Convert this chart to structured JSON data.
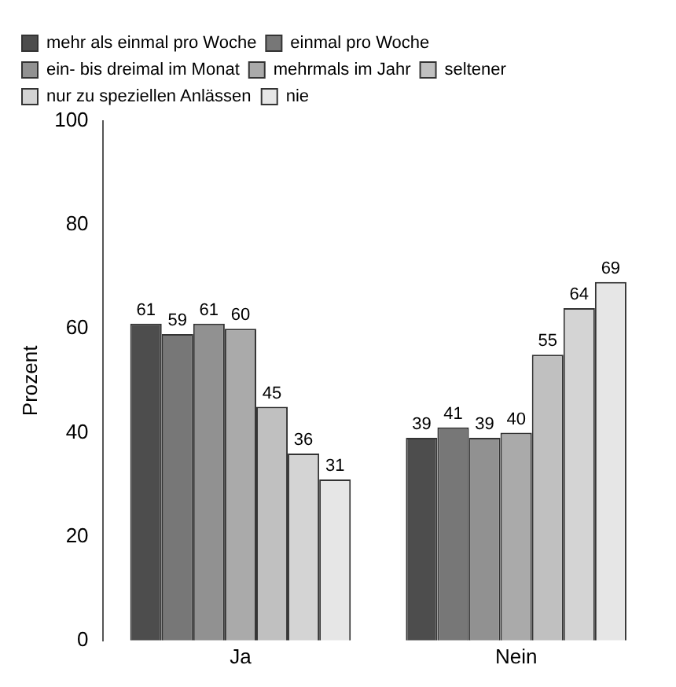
{
  "chart_data": {
    "type": "bar",
    "ylabel": "Prozent",
    "categories": [
      "Ja",
      "Nein"
    ],
    "series": [
      {
        "name": "mehr als einmal pro Woche",
        "color": "#4d4d4d",
        "values": [
          61,
          39
        ]
      },
      {
        "name": "einmal pro Woche",
        "color": "#777777",
        "values": [
          59,
          41
        ]
      },
      {
        "name": "ein- bis dreimal im Monat",
        "color": "#919191",
        "values": [
          61,
          39
        ]
      },
      {
        "name": "mehrmals im Jahr",
        "color": "#aaaaaa",
        "values": [
          60,
          40
        ]
      },
      {
        "name": "seltener",
        "color": "#c0c0c0",
        "values": [
          45,
          55
        ]
      },
      {
        "name": "nur zu speziellen Anlässen",
        "color": "#d4d4d4",
        "values": [
          36,
          64
        ]
      },
      {
        "name": "nie",
        "color": "#e6e6e6",
        "values": [
          31,
          69
        ]
      }
    ],
    "ylim": [
      0,
      100
    ],
    "yticks": [
      0,
      20,
      40,
      60,
      80,
      100
    ],
    "grid": false,
    "legend": "top",
    "data_labels": true
  }
}
